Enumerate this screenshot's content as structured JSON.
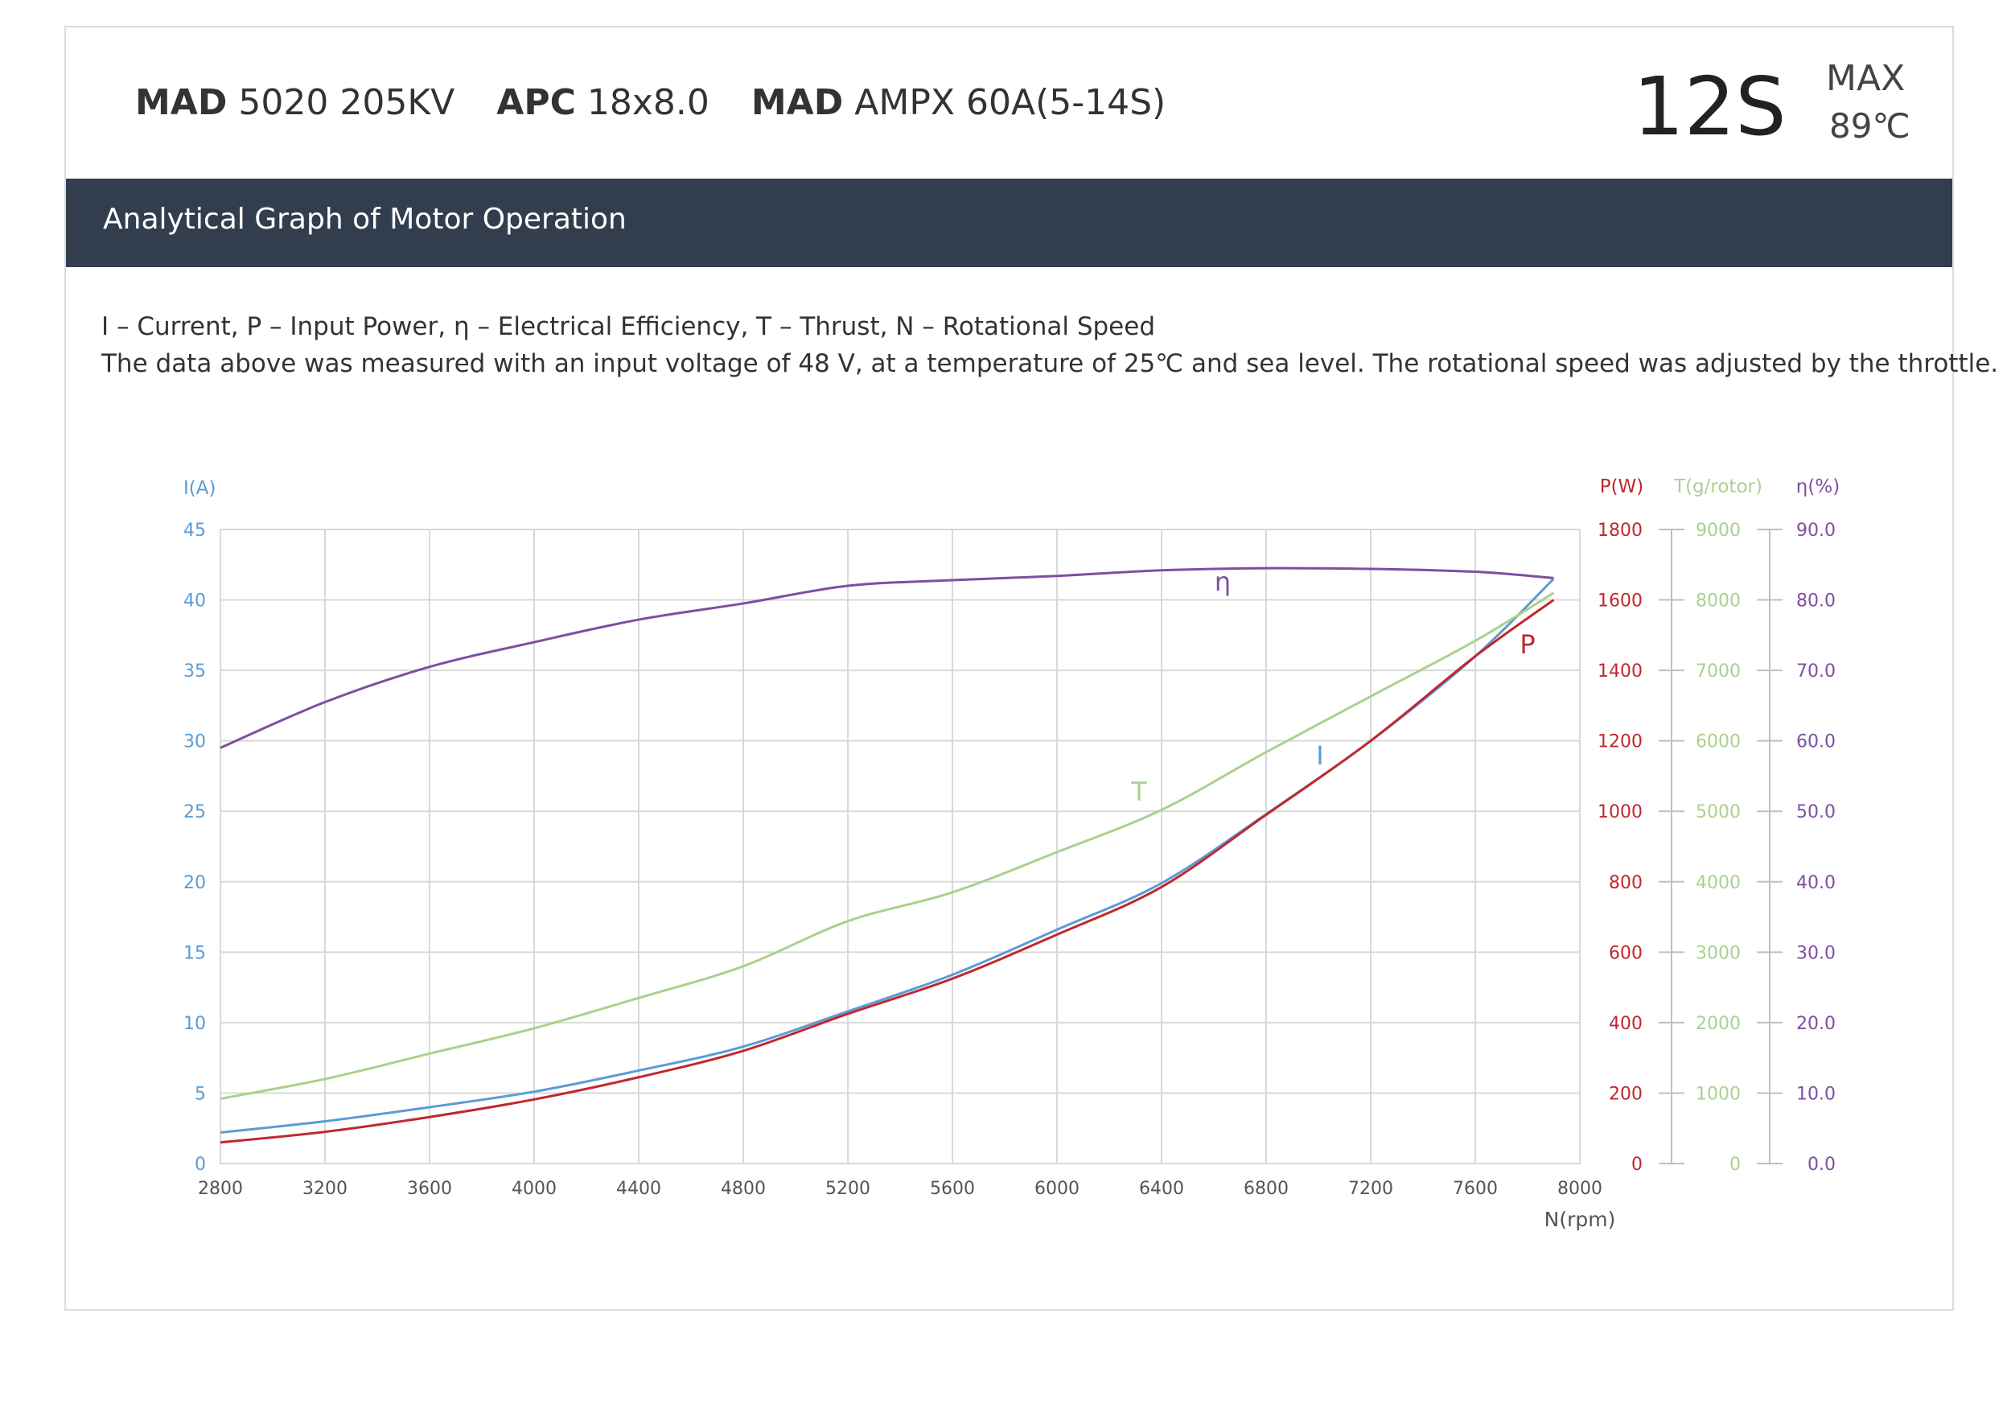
{
  "header": {
    "specs": [
      {
        "brand": "MAD",
        "model": "5020 205KV"
      },
      {
        "brand": "APC",
        "model": "18x8.0"
      },
      {
        "brand": "MAD",
        "model": "AMPX 60A(5-14S)"
      }
    ],
    "cells": "12S",
    "max_label": "MAX",
    "max_temp": "89℃"
  },
  "banner": {
    "title": "Analytical Graph of Motor Operation"
  },
  "description": {
    "line1": "I – Current, P – Input Power, η – Electrical Efficiency, T – Thrust,   N – Rotational Speed",
    "line2": "The data above was measured with an input voltage of 48 V, at a temperature of 25℃ and sea level. The rotational speed was adjusted by the throttle."
  },
  "colors": {
    "current": "#5b9bd5",
    "power": "#c0282d",
    "thrust": "#a9d18e",
    "efficiency": "#7f4ea0",
    "banner": "#323e4e",
    "grid": "#d9d9d9"
  },
  "chart_data": {
    "type": "line",
    "grid": true,
    "xlabel": "N(rpm)",
    "xlim": [
      2800,
      8000
    ],
    "x_ticks": [
      2800,
      3200,
      3600,
      4000,
      4400,
      4800,
      5200,
      5600,
      6000,
      6400,
      6800,
      7200,
      7600,
      8000
    ],
    "axes": {
      "current": {
        "label": "I(A)",
        "lim": [
          0,
          45
        ],
        "ticks": [
          "0",
          "5",
          "10",
          "15",
          "20",
          "25",
          "30",
          "35",
          "40",
          "45"
        ]
      },
      "power": {
        "label": "P(W)",
        "lim": [
          0,
          1800
        ],
        "ticks": [
          "0",
          "200",
          "400",
          "600",
          "800",
          "1000",
          "1200",
          "1400",
          "1600",
          "1800"
        ]
      },
      "thrust": {
        "label": "T(g/rotor)",
        "lim": [
          0,
          9000
        ],
        "ticks": [
          "0",
          "1000",
          "2000",
          "3000",
          "4000",
          "5000",
          "6000",
          "7000",
          "8000",
          "9000"
        ]
      },
      "efficiency": {
        "label": "η(%)",
        "lim": [
          0,
          90
        ],
        "ticks": [
          "0.0",
          "10.0",
          "20.0",
          "30.0",
          "40.0",
          "50.0",
          "60.0",
          "70.0",
          "80.0",
          "90.0"
        ]
      }
    },
    "series": [
      {
        "name": "η",
        "axis": "efficiency",
        "x": [
          2800,
          3200,
          3600,
          4000,
          4400,
          4800,
          5200,
          5600,
          6000,
          6400,
          6800,
          7200,
          7600,
          7900
        ],
        "y": [
          59.0,
          65.5,
          70.5,
          74.0,
          77.2,
          79.5,
          82.0,
          82.8,
          83.4,
          84.2,
          84.5,
          84.4,
          84.0,
          83.1
        ]
      },
      {
        "name": "I",
        "axis": "current",
        "x": [
          2800,
          3200,
          3600,
          4000,
          4400,
          4800,
          5200,
          5600,
          6000,
          6400,
          6800,
          7200,
          7600,
          7900
        ],
        "y": [
          2.2,
          3.0,
          4.0,
          5.1,
          6.6,
          8.3,
          10.8,
          13.4,
          16.6,
          19.9,
          24.8,
          30.0,
          36.0,
          41.5
        ]
      },
      {
        "name": "P",
        "axis": "power",
        "x": [
          2800,
          3200,
          3600,
          4000,
          4400,
          4800,
          5200,
          5600,
          6000,
          6400,
          6800,
          7200,
          7600,
          7900
        ],
        "y": [
          60,
          90,
          132,
          182,
          245,
          320,
          425,
          525,
          650,
          785,
          990,
          1200,
          1440,
          1600
        ]
      },
      {
        "name": "T",
        "axis": "thrust",
        "x": [
          2800,
          3200,
          3600,
          4000,
          4400,
          4800,
          5200,
          5600,
          6000,
          6400,
          6800,
          7200,
          7600,
          7900
        ],
        "y": [
          920,
          1200,
          1560,
          1920,
          2350,
          2800,
          3440,
          3850,
          4420,
          5020,
          5840,
          6630,
          7420,
          8100
        ]
      }
    ],
    "annotations": [
      {
        "text": "η",
        "series": "η"
      },
      {
        "text": "P",
        "series": "P"
      },
      {
        "text": "T",
        "series": "T"
      },
      {
        "text": "I",
        "series": "I"
      }
    ]
  }
}
